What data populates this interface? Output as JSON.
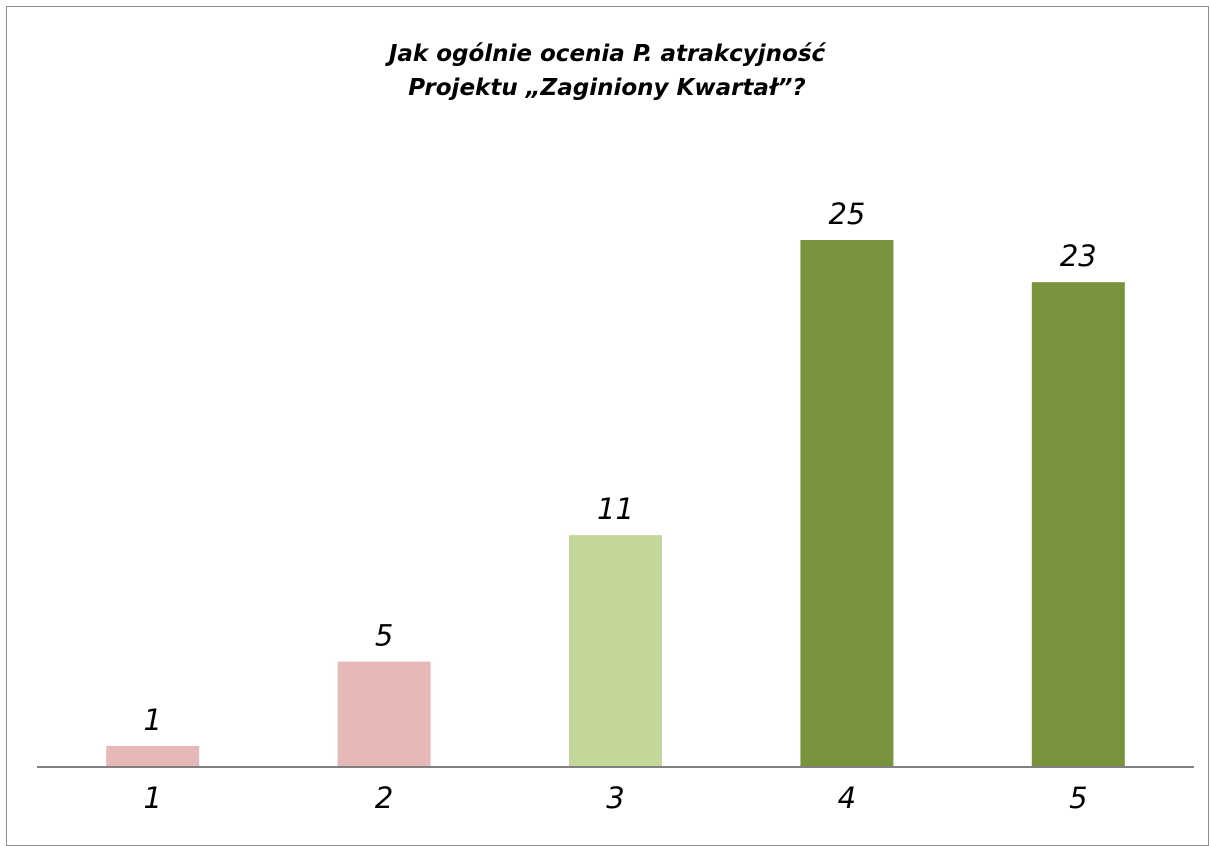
{
  "chart_data": {
    "type": "bar",
    "title_lines": [
      "Jak ogólnie ocenia P. atrakcyjność",
      "Projektu „Zaginiony Kwartał”?"
    ],
    "categories": [
      "1",
      "2",
      "3",
      "4",
      "5"
    ],
    "values": [
      1,
      5,
      11,
      25,
      23
    ],
    "data_labels": [
      "1",
      "5",
      "11",
      "25",
      "23"
    ],
    "bar_colors": [
      "#e6b9b8",
      "#e6b9b8",
      "#c4d79b",
      "#77933c",
      "#77933c"
    ],
    "ylim": [
      0,
      25
    ],
    "xlabel": "",
    "ylabel": "",
    "grid": false,
    "legend": "none",
    "axis_color": "#808080"
  }
}
